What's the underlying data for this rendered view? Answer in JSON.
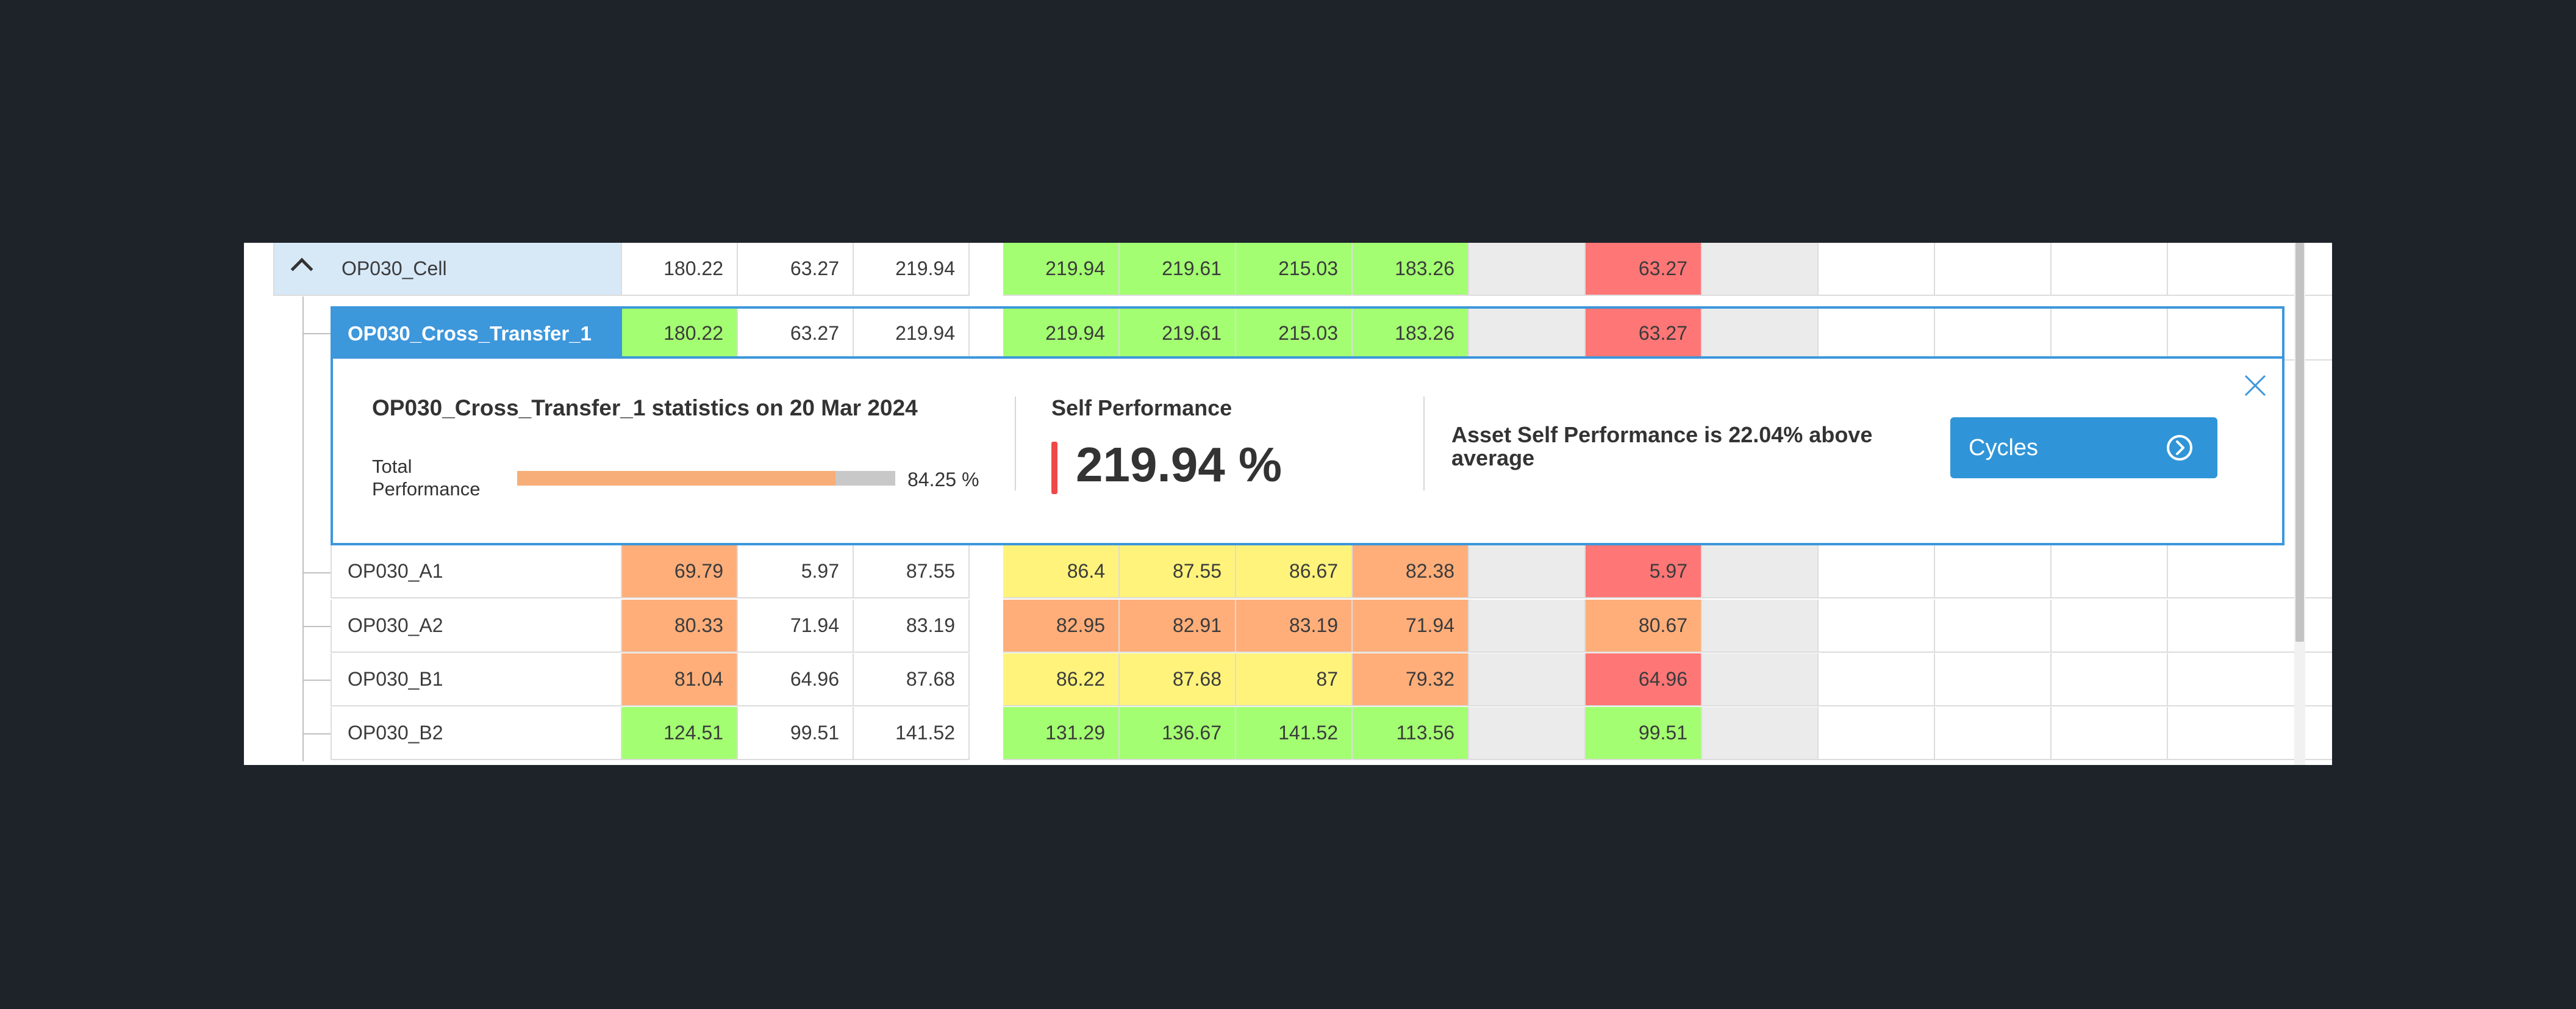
{
  "rows": [
    {
      "name": "OP030_Cell",
      "style": "parent",
      "metrics": [
        "180.22",
        "63.27",
        "219.94"
      ],
      "periods": [
        "219.94",
        "219.61",
        "215.03",
        "183.26"
      ],
      "last": [
        "",
        "63.27",
        "",
        "",
        "",
        "",
        ""
      ]
    },
    {
      "name": "OP030_Cross_Transfer_1",
      "style": "selected",
      "metrics": [
        "180.22",
        "63.27",
        "219.94"
      ],
      "periods": [
        "219.94",
        "219.61",
        "215.03",
        "183.26"
      ],
      "last": [
        "",
        "63.27",
        "",
        "",
        "",
        "",
        ""
      ]
    },
    {
      "name": "OP030_A1",
      "metrics": [
        "69.79",
        "5.97",
        "87.55"
      ],
      "periods": [
        "86.4",
        "87.55",
        "86.67",
        "82.38"
      ],
      "last": [
        "",
        "5.97",
        "",
        "",
        "",
        "",
        ""
      ]
    },
    {
      "name": "OP030_A2",
      "metrics": [
        "80.33",
        "71.94",
        "83.19"
      ],
      "periods": [
        "82.95",
        "82.91",
        "83.19",
        "71.94"
      ],
      "last": [
        "",
        "80.67",
        "",
        "",
        "",
        "",
        ""
      ]
    },
    {
      "name": "OP030_B1",
      "metrics": [
        "81.04",
        "64.96",
        "87.68"
      ],
      "periods": [
        "86.22",
        "87.68",
        "87",
        "79.32"
      ],
      "last": [
        "",
        "64.96",
        "",
        "",
        "",
        "",
        ""
      ]
    },
    {
      "name": "OP030_B2",
      "metrics": [
        "124.51",
        "99.51",
        "141.52"
      ],
      "periods": [
        "131.29",
        "136.67",
        "141.52",
        "113.56"
      ],
      "last": [
        "",
        "99.51",
        "",
        "",
        "",
        "",
        ""
      ]
    }
  ],
  "cell_colors": {
    "OP030_Cell": [
      "blue",
      "white",
      "white",
      "white",
      "green",
      "green",
      "green",
      "green",
      "grey",
      "red",
      "grey",
      "white",
      "white",
      "white",
      "white"
    ],
    "OP030_Cross_Transfer_1": [
      "select",
      "green",
      "white",
      "white",
      "green",
      "green",
      "green",
      "green",
      "grey",
      "red",
      "grey",
      "white",
      "white",
      "white",
      "white"
    ],
    "OP030_A1": [
      "white",
      "orange",
      "white",
      "white",
      "yellow",
      "yellow",
      "yellow",
      "orange",
      "grey",
      "red",
      "grey",
      "white",
      "white",
      "white",
      "white"
    ],
    "OP030_A2": [
      "white",
      "orange",
      "white",
      "white",
      "orange",
      "orange",
      "orange",
      "orange",
      "grey",
      "orange",
      "grey",
      "white",
      "white",
      "white",
      "white"
    ],
    "OP030_B1": [
      "white",
      "orange",
      "white",
      "white",
      "yellow",
      "yellow",
      "yellow",
      "orange",
      "grey",
      "red",
      "grey",
      "white",
      "white",
      "white",
      "white"
    ],
    "OP030_B2": [
      "white",
      "green",
      "white",
      "white",
      "green",
      "green",
      "green",
      "green",
      "grey",
      "green",
      "grey",
      "white",
      "white",
      "white",
      "white"
    ]
  },
  "palette": {
    "green": "#a3ff71",
    "yellow": "#fff37c",
    "orange": "#ffae7a",
    "red": "#ff7676",
    "grey": "#ebebeb",
    "selection_blue": "#3d97db",
    "accent_bar": "#f04848",
    "progress_fill": "#f7ae78"
  },
  "icons": {
    "collapse": "chevron-up-icon",
    "status_dot": "status-dot-icon",
    "close": "close-icon",
    "cycles_arrow": "circle-arrow-right-icon"
  },
  "detail": {
    "title": "OP030_Cross_Transfer_1 statistics on 20 Mar 2024",
    "total_label": "Total Performance",
    "total_value": "84.25 %",
    "total_fraction": 0.8425,
    "self_label": "Self Performance",
    "self_value": "219.94 %",
    "above_text": "Asset Self Performance is 22.04% above average",
    "cycles_label": "Cycles"
  }
}
